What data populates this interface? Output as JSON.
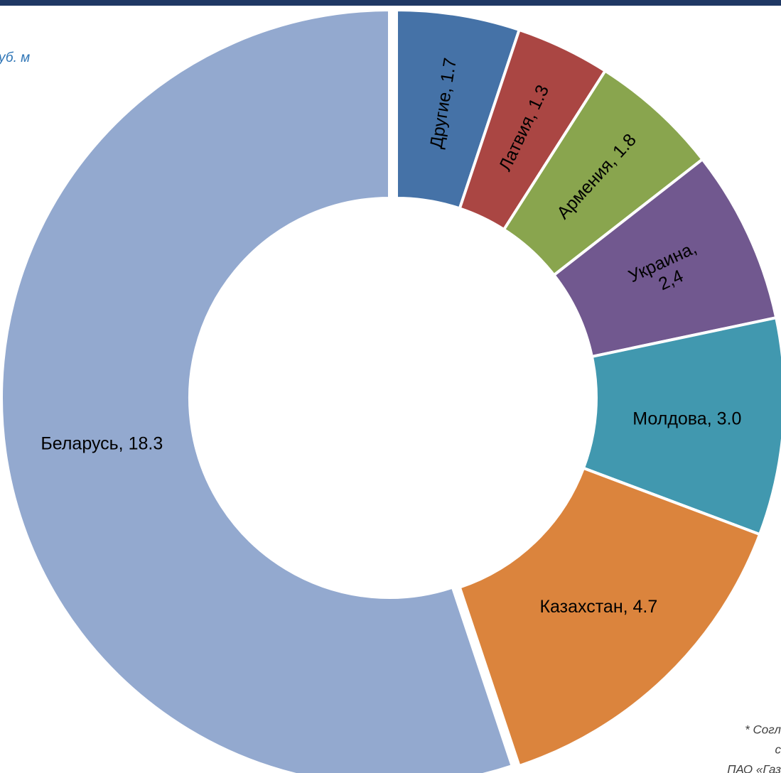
{
  "chart_data": {
    "type": "donut",
    "subtitle": "уб. м",
    "values": [
      1.7,
      1.3,
      1.8,
      2.4,
      3.0,
      4.7,
      18.3
    ],
    "value_labels": [
      "Другие, 1.7",
      "Латвия, 1.3",
      "Армения, 1.8",
      [
        "Украина,",
        "2,4"
      ],
      "Молдова, 3.0",
      "Казахстан, 4.7",
      "Беларусь, 18.3"
    ],
    "colors": [
      "#4572a7",
      "#aa4643",
      "#89a54e",
      "#71588f",
      "#4198af",
      "#db843d",
      "#93a9cf"
    ],
    "footnote": [
      "* Согл",
      "с",
      "ПАО «Газ"
    ]
  }
}
